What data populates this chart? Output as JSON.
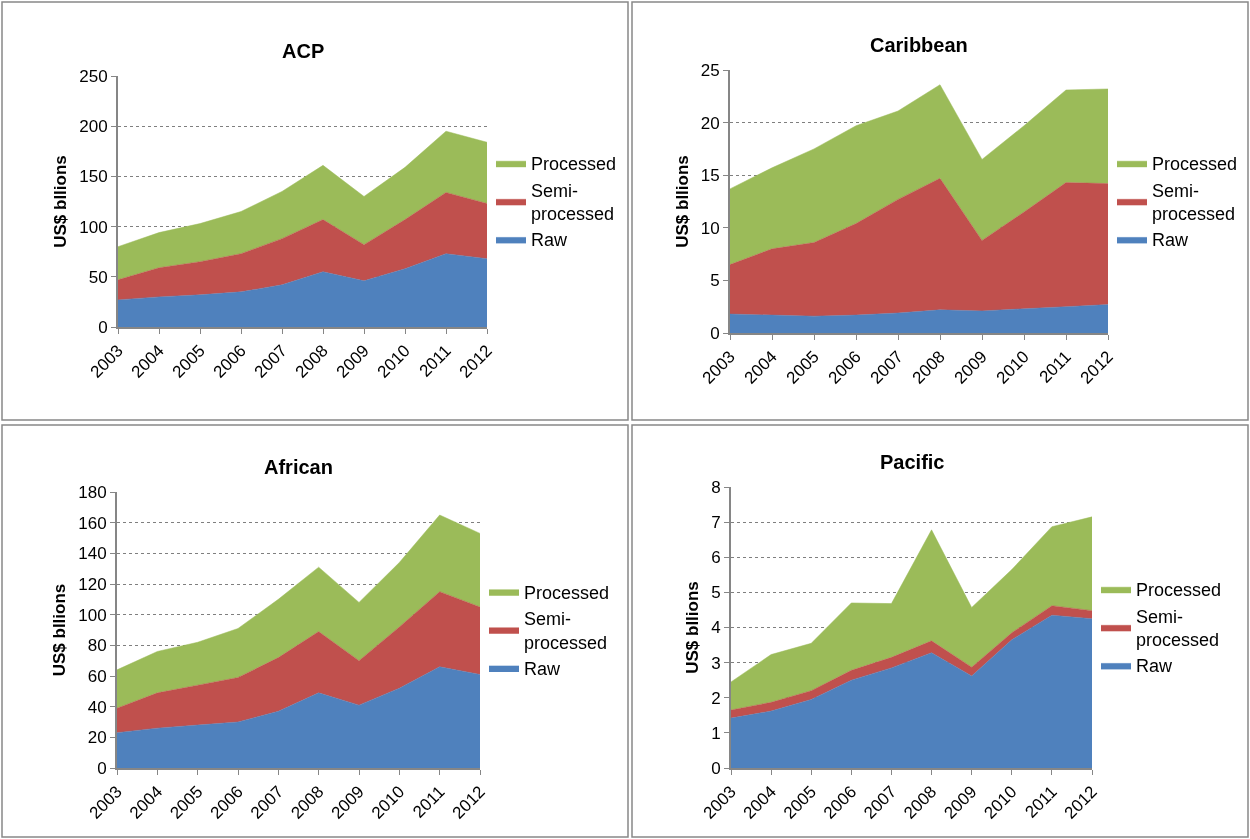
{
  "chart_data": [
    {
      "type": "area",
      "title": "ACP",
      "ylabel": "US$ bllions",
      "categories": [
        "2003",
        "2004",
        "2005",
        "2006",
        "2007",
        "2008",
        "2009",
        "2010",
        "2011",
        "2012"
      ],
      "stacked": true,
      "ylim": [
        0,
        250
      ],
      "yticks": [
        0,
        50,
        100,
        150,
        200,
        250
      ],
      "grid": "y",
      "legend": "right",
      "series": [
        {
          "name": "Raw",
          "color": "#4f81bd",
          "values": [
            27,
            30,
            32,
            35,
            42,
            55,
            46,
            58,
            73,
            68
          ]
        },
        {
          "name": "Semi-\nprocessed",
          "color": "#c0504d",
          "values": [
            20,
            29,
            33,
            38,
            46,
            52,
            36,
            49,
            61,
            55
          ]
        },
        {
          "name": "Processed",
          "color": "#9bbb59",
          "values": [
            33,
            35,
            38,
            42,
            47,
            54,
            48,
            52,
            61,
            61
          ]
        }
      ]
    },
    {
      "type": "area",
      "title": "Caribbean",
      "ylabel": "US$ bllions",
      "categories": [
        "2003",
        "2004",
        "2005",
        "2006",
        "2007",
        "2008",
        "2009",
        "2010",
        "2011",
        "2012"
      ],
      "stacked": true,
      "ylim": [
        0,
        25
      ],
      "yticks": [
        0,
        5,
        10,
        15,
        20,
        25
      ],
      "grid": "y",
      "legend": "right",
      "series": [
        {
          "name": "Raw",
          "color": "#4f81bd",
          "values": [
            1.8,
            1.7,
            1.6,
            1.7,
            1.9,
            2.2,
            2.1,
            2.3,
            2.5,
            2.7
          ]
        },
        {
          "name": "Semi-\nprocessed",
          "color": "#c0504d",
          "values": [
            4.7,
            6.3,
            7.0,
            8.7,
            10.8,
            12.5,
            6.7,
            9.2,
            11.8,
            11.5
          ]
        },
        {
          "name": "Processed",
          "color": "#9bbb59",
          "values": [
            7.2,
            7.7,
            8.9,
            9.3,
            8.4,
            8.9,
            7.7,
            8.2,
            8.8,
            9.0
          ]
        }
      ]
    },
    {
      "type": "area",
      "title": "African",
      "ylabel": "US$ bllions",
      "categories": [
        "2003",
        "2004",
        "2005",
        "2006",
        "2007",
        "2008",
        "2009",
        "2010",
        "2011",
        "2012"
      ],
      "stacked": true,
      "ylim": [
        0,
        180
      ],
      "yticks": [
        0,
        20,
        40,
        60,
        80,
        100,
        120,
        140,
        160,
        180
      ],
      "grid": "y",
      "legend": "right",
      "series": [
        {
          "name": "Raw",
          "color": "#4f81bd",
          "values": [
            23,
            26,
            28,
            30,
            37,
            49,
            41,
            52,
            66,
            61
          ]
        },
        {
          "name": "Semi-\nprocessed",
          "color": "#c0504d",
          "values": [
            16,
            23,
            26,
            29,
            35,
            40,
            29,
            40,
            49,
            44
          ]
        },
        {
          "name": "Processed",
          "color": "#9bbb59",
          "values": [
            25,
            27,
            28,
            32,
            38,
            42,
            38,
            42,
            50,
            48
          ]
        }
      ]
    },
    {
      "type": "area",
      "title": "Pacific",
      "ylabel": "US$ bllions",
      "categories": [
        "2003",
        "2004",
        "2005",
        "2006",
        "2007",
        "2008",
        "2009",
        "2010",
        "2011",
        "2012"
      ],
      "stacked": true,
      "ylim": [
        0,
        8
      ],
      "yticks": [
        0,
        1,
        2,
        3,
        4,
        5,
        6,
        7,
        8
      ],
      "grid": "y",
      "legend": "right",
      "series": [
        {
          "name": "Raw",
          "color": "#4f81bd",
          "values": [
            1.42,
            1.62,
            1.95,
            2.5,
            2.85,
            3.28,
            2.62,
            3.65,
            4.35,
            4.25
          ]
        },
        {
          "name": "Semi-\nprocessed",
          "color": "#c0504d",
          "values": [
            0.23,
            0.25,
            0.25,
            0.28,
            0.3,
            0.34,
            0.25,
            0.2,
            0.27,
            0.23
          ]
        },
        {
          "name": "Processed",
          "color": "#9bbb59",
          "values": [
            0.8,
            1.36,
            1.35,
            1.92,
            1.53,
            3.16,
            1.7,
            1.8,
            2.25,
            2.67
          ]
        }
      ]
    }
  ]
}
